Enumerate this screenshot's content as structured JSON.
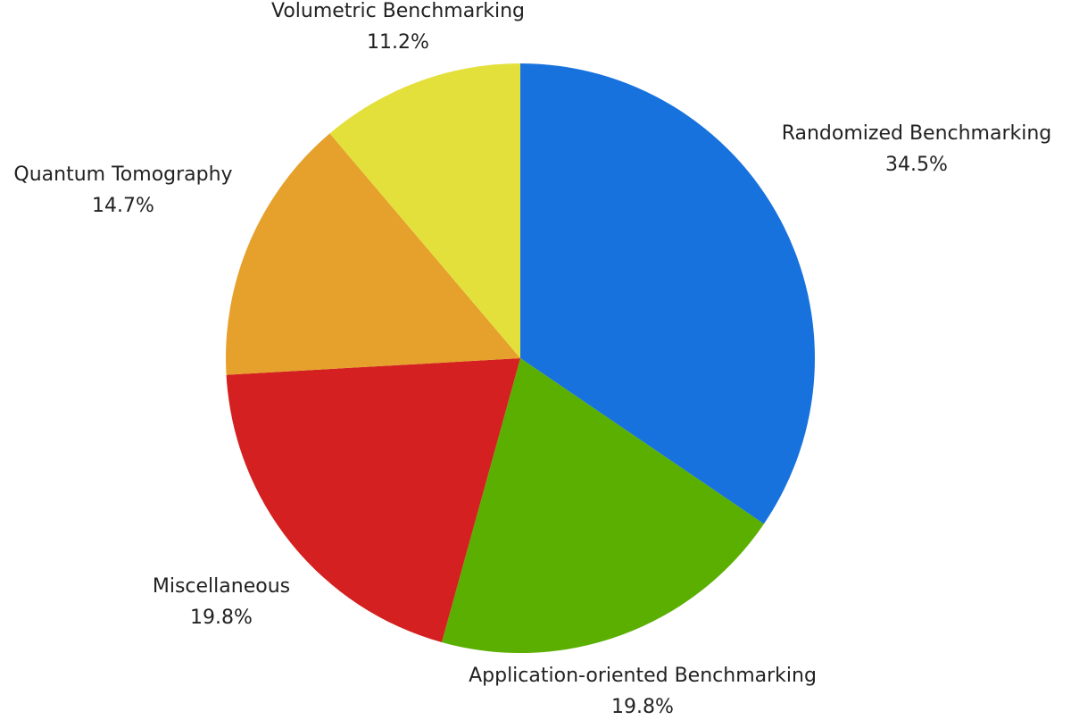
{
  "chart_data": {
    "type": "pie",
    "categories": [
      "Randomized Benchmarking",
      "Application-oriented Benchmarking",
      "Miscellaneous",
      "Quantum Tomography",
      "Volumetric Benchmarking"
    ],
    "values": [
      34.5,
      19.8,
      19.8,
      14.7,
      11.2
    ],
    "value_labels": [
      "34.5%",
      "19.8%",
      "19.8%",
      "14.7%",
      "11.2%"
    ],
    "colors": [
      "#1872de",
      "#5aaf00",
      "#d42020",
      "#e5a12b",
      "#e3e03c"
    ]
  }
}
